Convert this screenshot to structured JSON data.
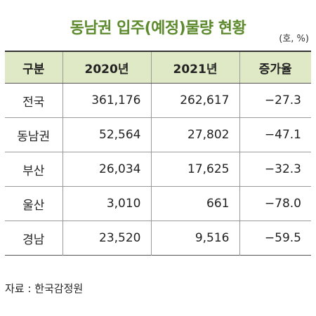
{
  "title": "동남권 입주(예정)물량 현황",
  "unit": "(호, %)",
  "table": {
    "headers": [
      "구분",
      "2020년",
      "2021년",
      "증가율"
    ],
    "rows": [
      {
        "region": "전국",
        "y2020": "361,176",
        "y2021": "262,617",
        "rate": "−27.3"
      },
      {
        "region": "동남권",
        "y2020": "52,564",
        "y2021": "27,802",
        "rate": "−47.1"
      },
      {
        "region": "부산",
        "y2020": "26,034",
        "y2021": "17,625",
        "rate": "−32.3"
      },
      {
        "region": "울산",
        "y2020": "3,010",
        "y2021": "661",
        "rate": "−78.0"
      },
      {
        "region": "경남",
        "y2020": "23,520",
        "y2021": "9,516",
        "rate": "−59.5"
      }
    ]
  },
  "source": "자료 : 한국감정원",
  "colors": {
    "title": "#5c8a2c",
    "header_background": "#dfe9c6"
  }
}
